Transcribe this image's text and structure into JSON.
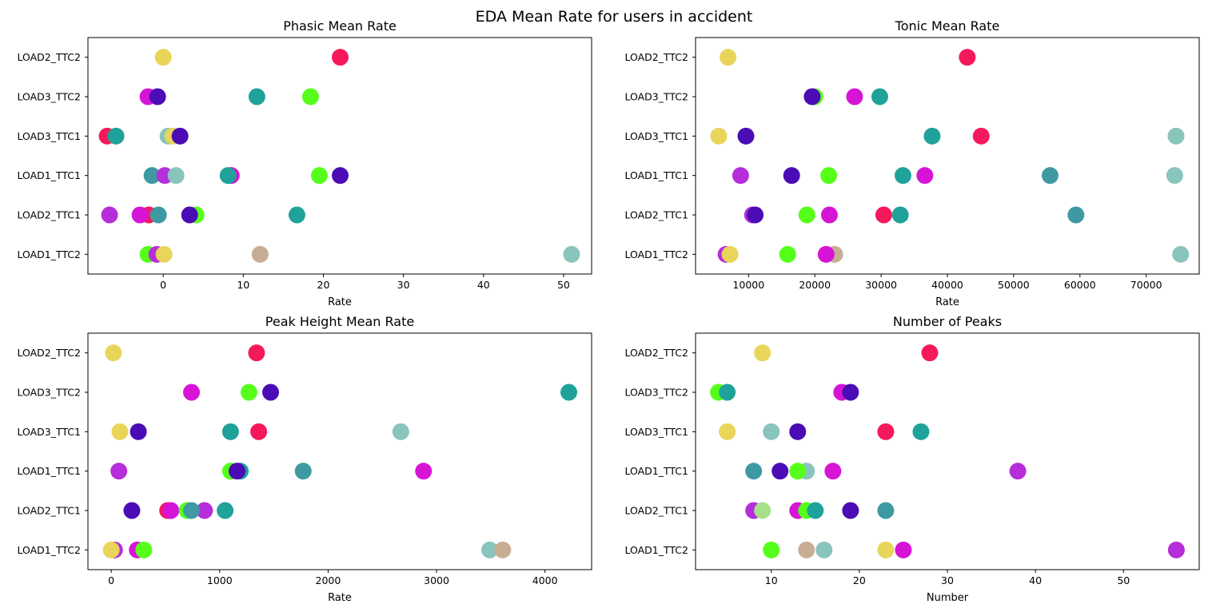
{
  "figure": {
    "title": "EDA Mean Rate for users in accident"
  },
  "chart_data": [
    {
      "type": "scatter",
      "title": "Phasic Mean Rate",
      "xlabel": "Rate",
      "ylabel": "",
      "categories": [
        "LOAD1_TTC2",
        "LOAD2_TTC1",
        "LOAD1_TTC1",
        "LOAD3_TTC1",
        "LOAD3_TTC2",
        "LOAD2_TTC2"
      ],
      "xlim": [
        -9.4,
        53.5
      ],
      "xticks": [
        0,
        10,
        20,
        30,
        40,
        50
      ],
      "points": [
        {
          "category": "LOAD2_TTC2",
          "x": 0,
          "color": "#e8d55a"
        },
        {
          "category": "LOAD2_TTC2",
          "x": 22.1,
          "color": "#f5195c"
        },
        {
          "category": "LOAD3_TTC2",
          "x": -1.9,
          "color": "#d614d6"
        },
        {
          "category": "LOAD3_TTC2",
          "x": -0.7,
          "color": "#4b0cb5"
        },
        {
          "category": "LOAD3_TTC2",
          "x": 11.7,
          "color": "#1fa29a"
        },
        {
          "category": "LOAD3_TTC2",
          "x": 18.4,
          "color": "#55ff1a"
        },
        {
          "category": "LOAD3_TTC1",
          "x": -7.0,
          "color": "#f5195c"
        },
        {
          "category": "LOAD3_TTC1",
          "x": -5.9,
          "color": "#1fa29a"
        },
        {
          "category": "LOAD3_TTC1",
          "x": 0.6,
          "color": "#89c4bd"
        },
        {
          "category": "LOAD3_TTC1",
          "x": 1.2,
          "color": "#e8d55a"
        },
        {
          "category": "LOAD3_TTC1",
          "x": 2.1,
          "color": "#4b0cb5"
        },
        {
          "category": "LOAD1_TTC1",
          "x": -1.4,
          "color": "#3f99a3"
        },
        {
          "category": "LOAD1_TTC1",
          "x": 0.2,
          "color": "#b52ed9"
        },
        {
          "category": "LOAD1_TTC1",
          "x": 1.6,
          "color": "#89c4bd"
        },
        {
          "category": "LOAD1_TTC1",
          "x": 8.5,
          "color": "#d614d6"
        },
        {
          "category": "LOAD1_TTC1",
          "x": 8.1,
          "color": "#1fa29a"
        },
        {
          "category": "LOAD1_TTC1",
          "x": 19.5,
          "color": "#55ff1a"
        },
        {
          "category": "LOAD1_TTC1",
          "x": 22.1,
          "color": "#4b0cb5"
        },
        {
          "category": "LOAD2_TTC1",
          "x": -6.7,
          "color": "#b52ed9"
        },
        {
          "category": "LOAD2_TTC1",
          "x": -1.8,
          "color": "#f5195c"
        },
        {
          "category": "LOAD2_TTC1",
          "x": -2.9,
          "color": "#d614d6"
        },
        {
          "category": "LOAD2_TTC1",
          "x": -0.6,
          "color": "#3f99a3"
        },
        {
          "category": "LOAD2_TTC1",
          "x": 4.1,
          "color": "#55ff1a"
        },
        {
          "category": "LOAD2_TTC1",
          "x": 3.3,
          "color": "#4b0cb5"
        },
        {
          "category": "LOAD2_TTC1",
          "x": 16.7,
          "color": "#1fa29a"
        },
        {
          "category": "LOAD1_TTC2",
          "x": -1.9,
          "color": "#55ff1a"
        },
        {
          "category": "LOAD1_TTC2",
          "x": -0.8,
          "color": "#b52ed9"
        },
        {
          "category": "LOAD1_TTC2",
          "x": 0.1,
          "color": "#e8d55a"
        },
        {
          "category": "LOAD1_TTC2",
          "x": 12.1,
          "color": "#c7ad94"
        },
        {
          "category": "LOAD1_TTC2",
          "x": 51.0,
          "color": "#89c4bd"
        }
      ]
    },
    {
      "type": "scatter",
      "title": "Tonic Mean Rate",
      "xlabel": "Rate",
      "ylabel": "",
      "categories": [
        "LOAD1_TTC2",
        "LOAD2_TTC1",
        "LOAD1_TTC1",
        "LOAD3_TTC1",
        "LOAD3_TTC2",
        "LOAD2_TTC2"
      ],
      "xlim": [
        2000,
        78000
      ],
      "xticks": [
        10000,
        20000,
        30000,
        40000,
        50000,
        60000,
        70000
      ],
      "points": [
        {
          "category": "LOAD2_TTC2",
          "x": 6900,
          "color": "#e8d55a"
        },
        {
          "category": "LOAD2_TTC2",
          "x": 43000,
          "color": "#f5195c"
        },
        {
          "category": "LOAD3_TTC2",
          "x": 20000,
          "color": "#55ff1a"
        },
        {
          "category": "LOAD3_TTC2",
          "x": 19600,
          "color": "#4b0cb5"
        },
        {
          "category": "LOAD3_TTC2",
          "x": 26000,
          "color": "#d614d6"
        },
        {
          "category": "LOAD3_TTC2",
          "x": 29800,
          "color": "#1fa29a"
        },
        {
          "category": "LOAD3_TTC1",
          "x": 5500,
          "color": "#e8d55a"
        },
        {
          "category": "LOAD3_TTC1",
          "x": 9600,
          "color": "#4b0cb5"
        },
        {
          "category": "LOAD3_TTC1",
          "x": 37700,
          "color": "#1fa29a"
        },
        {
          "category": "LOAD3_TTC1",
          "x": 45100,
          "color": "#f5195c"
        },
        {
          "category": "LOAD3_TTC1",
          "x": 74500,
          "color": "#89c4bd"
        },
        {
          "category": "LOAD1_TTC1",
          "x": 8800,
          "color": "#b52ed9"
        },
        {
          "category": "LOAD1_TTC1",
          "x": 16500,
          "color": "#4b0cb5"
        },
        {
          "category": "LOAD1_TTC1",
          "x": 22100,
          "color": "#55ff1a"
        },
        {
          "category": "LOAD1_TTC1",
          "x": 33300,
          "color": "#1fa29a"
        },
        {
          "category": "LOAD1_TTC1",
          "x": 36600,
          "color": "#d614d6"
        },
        {
          "category": "LOAD1_TTC1",
          "x": 55500,
          "color": "#3f99a3"
        },
        {
          "category": "LOAD1_TTC1",
          "x": 74300,
          "color": "#89c4bd"
        },
        {
          "category": "LOAD2_TTC1",
          "x": 10600,
          "color": "#b52ed9"
        },
        {
          "category": "LOAD2_TTC1",
          "x": 11000,
          "color": "#4b0cb5"
        },
        {
          "category": "LOAD2_TTC1",
          "x": 18800,
          "color": "#55ff1a"
        },
        {
          "category": "LOAD2_TTC1",
          "x": 22200,
          "color": "#d614d6"
        },
        {
          "category": "LOAD2_TTC1",
          "x": 30400,
          "color": "#f5195c"
        },
        {
          "category": "LOAD2_TTC1",
          "x": 32900,
          "color": "#1fa29a"
        },
        {
          "category": "LOAD2_TTC1",
          "x": 59400,
          "color": "#3f99a3"
        },
        {
          "category": "LOAD1_TTC2",
          "x": 6600,
          "color": "#b52ed9"
        },
        {
          "category": "LOAD1_TTC2",
          "x": 7200,
          "color": "#e8d55a"
        },
        {
          "category": "LOAD1_TTC2",
          "x": 15900,
          "color": "#55ff1a"
        },
        {
          "category": "LOAD1_TTC2",
          "x": 23000,
          "color": "#c7ad94"
        },
        {
          "category": "LOAD1_TTC2",
          "x": 21700,
          "color": "#d614d6"
        },
        {
          "category": "LOAD1_TTC2",
          "x": 75200,
          "color": "#89c4bd"
        }
      ]
    },
    {
      "type": "scatter",
      "title": "Peak Height Mean Rate",
      "xlabel": "Rate",
      "ylabel": "",
      "categories": [
        "LOAD1_TTC2",
        "LOAD2_TTC1",
        "LOAD1_TTC1",
        "LOAD3_TTC1",
        "LOAD3_TTC2",
        "LOAD2_TTC2"
      ],
      "xlim": [
        -215,
        4430
      ],
      "xticks": [
        0,
        1000,
        2000,
        3000,
        4000
      ],
      "points": [
        {
          "category": "LOAD2_TTC2",
          "x": 20,
          "color": "#e8d55a"
        },
        {
          "category": "LOAD2_TTC2",
          "x": 1340,
          "color": "#f5195c"
        },
        {
          "category": "LOAD3_TTC2",
          "x": 740,
          "color": "#d614d6"
        },
        {
          "category": "LOAD3_TTC2",
          "x": 1270,
          "color": "#55ff1a"
        },
        {
          "category": "LOAD3_TTC2",
          "x": 1470,
          "color": "#4b0cb5"
        },
        {
          "category": "LOAD3_TTC2",
          "x": 4220,
          "color": "#1fa29a"
        },
        {
          "category": "LOAD3_TTC1",
          "x": 80,
          "color": "#e8d55a"
        },
        {
          "category": "LOAD3_TTC1",
          "x": 250,
          "color": "#4b0cb5"
        },
        {
          "category": "LOAD3_TTC1",
          "x": 1100,
          "color": "#1fa29a"
        },
        {
          "category": "LOAD3_TTC1",
          "x": 1360,
          "color": "#f5195c"
        },
        {
          "category": "LOAD3_TTC1",
          "x": 2670,
          "color": "#89c4bd"
        },
        {
          "category": "LOAD1_TTC1",
          "x": 70,
          "color": "#b52ed9"
        },
        {
          "category": "LOAD1_TTC1",
          "x": 1100,
          "color": "#55ff1a"
        },
        {
          "category": "LOAD1_TTC1",
          "x": 1190,
          "color": "#1fa29a"
        },
        {
          "category": "LOAD1_TTC1",
          "x": 1160,
          "color": "#4b0cb5"
        },
        {
          "category": "LOAD1_TTC1",
          "x": 1770,
          "color": "#3f99a3"
        },
        {
          "category": "LOAD1_TTC1",
          "x": 2880,
          "color": "#d614d6"
        },
        {
          "category": "LOAD2_TTC1",
          "x": 190,
          "color": "#4b0cb5"
        },
        {
          "category": "LOAD2_TTC1",
          "x": 520,
          "color": "#f5195c"
        },
        {
          "category": "LOAD2_TTC1",
          "x": 550,
          "color": "#d614d6"
        },
        {
          "category": "LOAD2_TTC1",
          "x": 700,
          "color": "#55ff1a"
        },
        {
          "category": "LOAD2_TTC1",
          "x": 860,
          "color": "#b52ed9"
        },
        {
          "category": "LOAD2_TTC1",
          "x": 740,
          "color": "#3f99a3"
        },
        {
          "category": "LOAD2_TTC1",
          "x": 1050,
          "color": "#1fa29a"
        },
        {
          "category": "LOAD1_TTC2",
          "x": 30,
          "color": "#b52ed9"
        },
        {
          "category": "LOAD1_TTC2",
          "x": 0,
          "color": "#e8d55a"
        },
        {
          "category": "LOAD1_TTC2",
          "x": 240,
          "color": "#d614d6"
        },
        {
          "category": "LOAD1_TTC2",
          "x": 300,
          "color": "#55ff1a"
        },
        {
          "category": "LOAD1_TTC2",
          "x": 3490,
          "color": "#89c4bd"
        },
        {
          "category": "LOAD1_TTC2",
          "x": 3610,
          "color": "#c7ad94"
        }
      ]
    },
    {
      "type": "scatter",
      "title": "Number of Peaks",
      "xlabel": "Number",
      "ylabel": "",
      "categories": [
        "LOAD1_TTC2",
        "LOAD2_TTC1",
        "LOAD1_TTC1",
        "LOAD3_TTC1",
        "LOAD3_TTC2",
        "LOAD2_TTC2"
      ],
      "xlim": [
        1.4,
        58.6
      ],
      "xticks": [
        10,
        20,
        30,
        40,
        50
      ],
      "points": [
        {
          "category": "LOAD2_TTC2",
          "x": 9,
          "color": "#e8d55a"
        },
        {
          "category": "LOAD2_TTC2",
          "x": 28,
          "color": "#f5195c"
        },
        {
          "category": "LOAD3_TTC2",
          "x": 4,
          "color": "#55ff1a"
        },
        {
          "category": "LOAD3_TTC2",
          "x": 5,
          "color": "#1fa29a"
        },
        {
          "category": "LOAD3_TTC2",
          "x": 18,
          "color": "#d614d6"
        },
        {
          "category": "LOAD3_TTC2",
          "x": 19,
          "color": "#4b0cb5"
        },
        {
          "category": "LOAD3_TTC1",
          "x": 5,
          "color": "#e8d55a"
        },
        {
          "category": "LOAD3_TTC1",
          "x": 10,
          "color": "#89c4bd"
        },
        {
          "category": "LOAD3_TTC1",
          "x": 13,
          "color": "#4b0cb5"
        },
        {
          "category": "LOAD3_TTC1",
          "x": 23,
          "color": "#f5195c"
        },
        {
          "category": "LOAD3_TTC1",
          "x": 27,
          "color": "#1fa29a"
        },
        {
          "category": "LOAD1_TTC1",
          "x": 8,
          "color": "#3f99a3"
        },
        {
          "category": "LOAD1_TTC1",
          "x": 11,
          "color": "#4b0cb5"
        },
        {
          "category": "LOAD1_TTC1",
          "x": 14,
          "color": "#89c4bd"
        },
        {
          "category": "LOAD1_TTC1",
          "x": 13,
          "color": "#55ff1a"
        },
        {
          "category": "LOAD1_TTC1",
          "x": 17,
          "color": "#d614d6"
        },
        {
          "category": "LOAD1_TTC1",
          "x": 38,
          "color": "#b52ed9"
        },
        {
          "category": "LOAD2_TTC1",
          "x": 8,
          "color": "#b52ed9"
        },
        {
          "category": "LOAD2_TTC1",
          "x": 9,
          "color": "#a8e08a"
        },
        {
          "category": "LOAD2_TTC1",
          "x": 13,
          "color": "#d614d6"
        },
        {
          "category": "LOAD2_TTC1",
          "x": 14,
          "color": "#55ff1a"
        },
        {
          "category": "LOAD2_TTC1",
          "x": 15,
          "color": "#1fa29a"
        },
        {
          "category": "LOAD2_TTC1",
          "x": 19,
          "color": "#4b0cb5"
        },
        {
          "category": "LOAD2_TTC1",
          "x": 23,
          "color": "#3f99a3"
        },
        {
          "category": "LOAD1_TTC2",
          "x": 10,
          "color": "#55ff1a"
        },
        {
          "category": "LOAD1_TTC2",
          "x": 14,
          "color": "#c7ad94"
        },
        {
          "category": "LOAD1_TTC2",
          "x": 16,
          "color": "#89c4bd"
        },
        {
          "category": "LOAD1_TTC2",
          "x": 23,
          "color": "#e8d55a"
        },
        {
          "category": "LOAD1_TTC2",
          "x": 25,
          "color": "#d614d6"
        },
        {
          "category": "LOAD1_TTC2",
          "x": 56,
          "color": "#b52ed9"
        }
      ]
    }
  ]
}
